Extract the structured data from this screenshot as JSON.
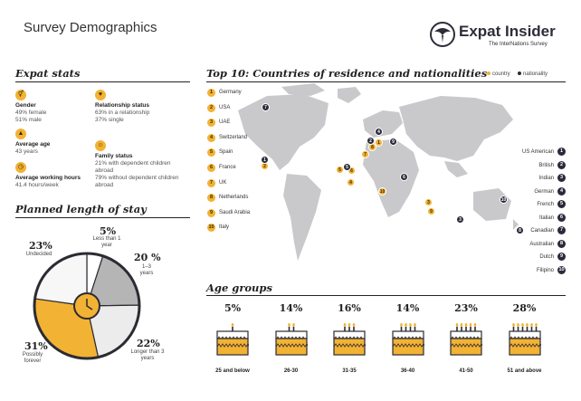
{
  "header": {
    "title": "Survey Demographics",
    "brand_name": "Expat Insider",
    "brand_sub": "The InterNations Survey"
  },
  "expat_stats": {
    "title": "Expat stats",
    "items": [
      {
        "label": "Gender",
        "values": [
          "49% female",
          "51% male"
        ],
        "icon": "gender-icon"
      },
      {
        "label": "Relationship status",
        "values": [
          "63% in a relationship",
          "37% single"
        ],
        "icon": "heart-icon"
      },
      {
        "label": "Average age",
        "values": [
          "43 years"
        ],
        "icon": "cake-icon"
      },
      {
        "label": "Family status",
        "values": [
          "21% with dependent children abroad",
          "79% without dependent children abroad"
        ],
        "icon": "family-icon"
      },
      {
        "label": "Average working hours",
        "values": [
          "41.4 hours/week"
        ],
        "icon": "clock-icon"
      }
    ]
  },
  "planned_stay": {
    "title": "Planned length of stay",
    "segments": [
      {
        "pct": "5%",
        "label": "Less than 1 year",
        "value": 5,
        "color": "#ffffff"
      },
      {
        "pct": "20 %",
        "label": "1–3 years",
        "value": 20,
        "color": "#b5b5b5"
      },
      {
        "pct": "22%",
        "label": "Longer than 3 years",
        "value": 22,
        "color": "#ececec"
      },
      {
        "pct": "31%",
        "label": "Possibly forever",
        "value": 31,
        "color": "#f2b233"
      },
      {
        "pct": "23%",
        "label": "Undecided",
        "value": 23,
        "color": "#f7f7f7"
      }
    ]
  },
  "top10": {
    "title": "Top 10: Countries of residence and nationalities",
    "legend_country": "country",
    "legend_nationality": "nationality",
    "countries": [
      "Germany",
      "USA",
      "UAE",
      "Switzerland",
      "Spain",
      "France",
      "UK",
      "Netherlands",
      "Saudi Arabia",
      "Italy"
    ],
    "nationalities": [
      "US American",
      "British",
      "Indian",
      "German",
      "French",
      "Italian",
      "Canadian",
      "Australian",
      "Dutch",
      "Filipino"
    ],
    "nationality_nums": [
      "1",
      "2",
      "3",
      "4",
      "5",
      "6",
      "7",
      "8",
      "9",
      "10"
    ],
    "country_nums": [
      "1",
      "2",
      "3",
      "4",
      "5",
      "6",
      "7",
      "8",
      "9",
      "10"
    ],
    "accent_color": "#f2b233",
    "dark_color": "#2a2a3a"
  },
  "age_groups": {
    "title": "Age groups",
    "groups": [
      {
        "pct": "5%",
        "label": "25 and below",
        "candles": 1
      },
      {
        "pct": "14%",
        "label": "26-30",
        "candles": 2
      },
      {
        "pct": "16%",
        "label": "31-35",
        "candles": 3
      },
      {
        "pct": "14%",
        "label": "36-40",
        "candles": 4
      },
      {
        "pct": "23%",
        "label": "41-50",
        "candles": 5
      },
      {
        "pct": "28%",
        "label": "51 and above",
        "candles": 6
      }
    ]
  }
}
